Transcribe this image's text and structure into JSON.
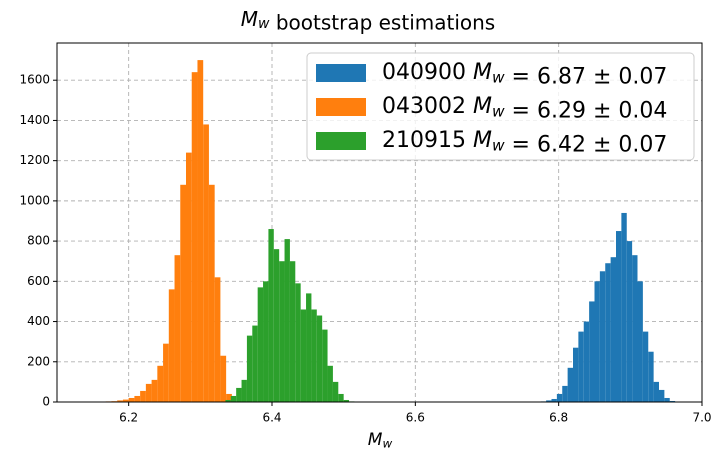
{
  "chart_data": {
    "type": "histogram",
    "title": "Mw bootstrap estimations",
    "x_label": "Mw",
    "series": [
      {
        "name": "040900 Mw = 6.87 ± 0.07",
        "color": "#1f77b4",
        "bins": [
          6.775,
          6.7825,
          6.79,
          6.7975,
          6.805,
          6.8125,
          6.82,
          6.8275,
          6.835,
          6.8425,
          6.85,
          6.8575,
          6.865,
          6.8725,
          6.88,
          6.8875,
          6.895,
          6.9025,
          6.91,
          6.9175,
          6.925,
          6.9325,
          6.94,
          6.9475,
          6.955,
          6.9625,
          6.97
        ],
        "values": [
          3,
          8,
          15,
          40,
          80,
          170,
          270,
          350,
          400,
          500,
          600,
          650,
          690,
          720,
          850,
          940,
          800,
          730,
          600,
          350,
          250,
          100,
          60,
          20,
          5,
          2
        ]
      },
      {
        "name": "043002 Mw = 6.29 ± 0.04",
        "color": "#ff7f0e",
        "bins": [
          6.136,
          6.144,
          6.152,
          6.16,
          6.168,
          6.176,
          6.184,
          6.192,
          6.2,
          6.208,
          6.216,
          6.224,
          6.232,
          6.24,
          6.248,
          6.256,
          6.264,
          6.272,
          6.28,
          6.288,
          6.296,
          6.304,
          6.312,
          6.32,
          6.328,
          6.336,
          6.344
        ],
        "values": [
          2,
          0,
          1,
          0,
          3,
          4,
          8,
          12,
          20,
          30,
          55,
          90,
          110,
          180,
          290,
          560,
          730,
          1080,
          1240,
          1640,
          1700,
          1380,
          1080,
          620,
          230,
          40
        ]
      },
      {
        "name": "210915 Mw = 6.42 ± 0.07",
        "color": "#2ca02c",
        "bins": [
          6.335,
          6.3425,
          6.35,
          6.3575,
          6.365,
          6.3725,
          6.38,
          6.3875,
          6.395,
          6.4025,
          6.41,
          6.4175,
          6.425,
          6.4325,
          6.44,
          6.4475,
          6.455,
          6.4625,
          6.47,
          6.4775,
          6.485,
          6.4925,
          6.5,
          6.5075,
          6.515
        ],
        "values": [
          10,
          30,
          70,
          110,
          330,
          380,
          570,
          600,
          860,
          760,
          700,
          810,
          700,
          590,
          460,
          540,
          460,
          430,
          360,
          180,
          100,
          40,
          10,
          3
        ]
      }
    ],
    "xlim": [
      6.1,
      7.0
    ],
    "xticks": [
      6.2,
      6.4,
      6.6,
      6.8,
      {
        "value": 7.0,
        "label": "7.0"
      }
    ],
    "ylim": [
      0,
      1785
    ],
    "yticks": [
      0,
      200,
      400,
      600,
      800,
      1000,
      1200,
      1400,
      1600
    ],
    "grid": true,
    "legend": "upper right"
  }
}
